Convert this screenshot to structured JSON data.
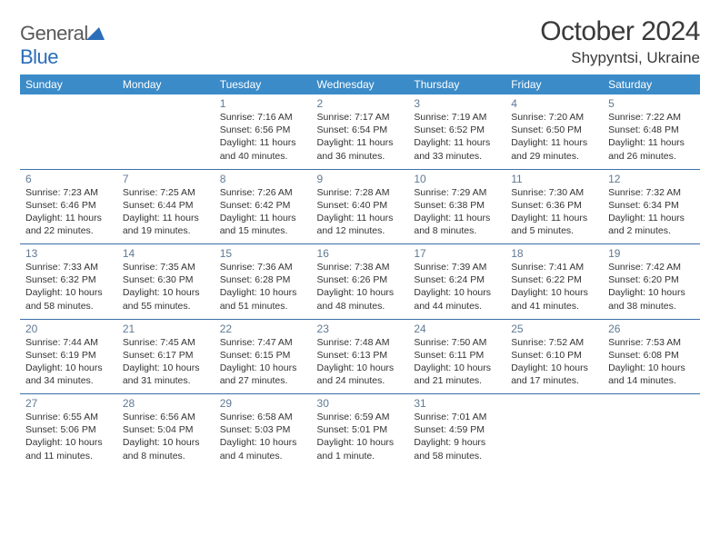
{
  "logo": {
    "text1": "General",
    "text2": "Blue"
  },
  "title": "October 2024",
  "location": "Shypyntsi, Ukraine",
  "colors": {
    "header_bg": "#3b8bc8",
    "header_text": "#ffffff",
    "divider": "#3b6fa8",
    "daynum": "#5f7a94",
    "body_text": "#333333",
    "logo_gray": "#5a5a5a",
    "logo_blue": "#2a6db8",
    "background": "#ffffff"
  },
  "typography": {
    "title_fontsize": 30,
    "location_fontsize": 17,
    "dow_fontsize": 12,
    "daynum_fontsize": 12,
    "cell_fontsize": 10.5,
    "font_family": "Arial"
  },
  "dow": [
    "Sunday",
    "Monday",
    "Tuesday",
    "Wednesday",
    "Thursday",
    "Friday",
    "Saturday"
  ],
  "weeks": [
    [
      null,
      null,
      {
        "n": "1",
        "sr": "Sunrise: 7:16 AM",
        "ss": "Sunset: 6:56 PM",
        "dl": "Daylight: 11 hours and 40 minutes."
      },
      {
        "n": "2",
        "sr": "Sunrise: 7:17 AM",
        "ss": "Sunset: 6:54 PM",
        "dl": "Daylight: 11 hours and 36 minutes."
      },
      {
        "n": "3",
        "sr": "Sunrise: 7:19 AM",
        "ss": "Sunset: 6:52 PM",
        "dl": "Daylight: 11 hours and 33 minutes."
      },
      {
        "n": "4",
        "sr": "Sunrise: 7:20 AM",
        "ss": "Sunset: 6:50 PM",
        "dl": "Daylight: 11 hours and 29 minutes."
      },
      {
        "n": "5",
        "sr": "Sunrise: 7:22 AM",
        "ss": "Sunset: 6:48 PM",
        "dl": "Daylight: 11 hours and 26 minutes."
      }
    ],
    [
      {
        "n": "6",
        "sr": "Sunrise: 7:23 AM",
        "ss": "Sunset: 6:46 PM",
        "dl": "Daylight: 11 hours and 22 minutes."
      },
      {
        "n": "7",
        "sr": "Sunrise: 7:25 AM",
        "ss": "Sunset: 6:44 PM",
        "dl": "Daylight: 11 hours and 19 minutes."
      },
      {
        "n": "8",
        "sr": "Sunrise: 7:26 AM",
        "ss": "Sunset: 6:42 PM",
        "dl": "Daylight: 11 hours and 15 minutes."
      },
      {
        "n": "9",
        "sr": "Sunrise: 7:28 AM",
        "ss": "Sunset: 6:40 PM",
        "dl": "Daylight: 11 hours and 12 minutes."
      },
      {
        "n": "10",
        "sr": "Sunrise: 7:29 AM",
        "ss": "Sunset: 6:38 PM",
        "dl": "Daylight: 11 hours and 8 minutes."
      },
      {
        "n": "11",
        "sr": "Sunrise: 7:30 AM",
        "ss": "Sunset: 6:36 PM",
        "dl": "Daylight: 11 hours and 5 minutes."
      },
      {
        "n": "12",
        "sr": "Sunrise: 7:32 AM",
        "ss": "Sunset: 6:34 PM",
        "dl": "Daylight: 11 hours and 2 minutes."
      }
    ],
    [
      {
        "n": "13",
        "sr": "Sunrise: 7:33 AM",
        "ss": "Sunset: 6:32 PM",
        "dl": "Daylight: 10 hours and 58 minutes."
      },
      {
        "n": "14",
        "sr": "Sunrise: 7:35 AM",
        "ss": "Sunset: 6:30 PM",
        "dl": "Daylight: 10 hours and 55 minutes."
      },
      {
        "n": "15",
        "sr": "Sunrise: 7:36 AM",
        "ss": "Sunset: 6:28 PM",
        "dl": "Daylight: 10 hours and 51 minutes."
      },
      {
        "n": "16",
        "sr": "Sunrise: 7:38 AM",
        "ss": "Sunset: 6:26 PM",
        "dl": "Daylight: 10 hours and 48 minutes."
      },
      {
        "n": "17",
        "sr": "Sunrise: 7:39 AM",
        "ss": "Sunset: 6:24 PM",
        "dl": "Daylight: 10 hours and 44 minutes."
      },
      {
        "n": "18",
        "sr": "Sunrise: 7:41 AM",
        "ss": "Sunset: 6:22 PM",
        "dl": "Daylight: 10 hours and 41 minutes."
      },
      {
        "n": "19",
        "sr": "Sunrise: 7:42 AM",
        "ss": "Sunset: 6:20 PM",
        "dl": "Daylight: 10 hours and 38 minutes."
      }
    ],
    [
      {
        "n": "20",
        "sr": "Sunrise: 7:44 AM",
        "ss": "Sunset: 6:19 PM",
        "dl": "Daylight: 10 hours and 34 minutes."
      },
      {
        "n": "21",
        "sr": "Sunrise: 7:45 AM",
        "ss": "Sunset: 6:17 PM",
        "dl": "Daylight: 10 hours and 31 minutes."
      },
      {
        "n": "22",
        "sr": "Sunrise: 7:47 AM",
        "ss": "Sunset: 6:15 PM",
        "dl": "Daylight: 10 hours and 27 minutes."
      },
      {
        "n": "23",
        "sr": "Sunrise: 7:48 AM",
        "ss": "Sunset: 6:13 PM",
        "dl": "Daylight: 10 hours and 24 minutes."
      },
      {
        "n": "24",
        "sr": "Sunrise: 7:50 AM",
        "ss": "Sunset: 6:11 PM",
        "dl": "Daylight: 10 hours and 21 minutes."
      },
      {
        "n": "25",
        "sr": "Sunrise: 7:52 AM",
        "ss": "Sunset: 6:10 PM",
        "dl": "Daylight: 10 hours and 17 minutes."
      },
      {
        "n": "26",
        "sr": "Sunrise: 7:53 AM",
        "ss": "Sunset: 6:08 PM",
        "dl": "Daylight: 10 hours and 14 minutes."
      }
    ],
    [
      {
        "n": "27",
        "sr": "Sunrise: 6:55 AM",
        "ss": "Sunset: 5:06 PM",
        "dl": "Daylight: 10 hours and 11 minutes."
      },
      {
        "n": "28",
        "sr": "Sunrise: 6:56 AM",
        "ss": "Sunset: 5:04 PM",
        "dl": "Daylight: 10 hours and 8 minutes."
      },
      {
        "n": "29",
        "sr": "Sunrise: 6:58 AM",
        "ss": "Sunset: 5:03 PM",
        "dl": "Daylight: 10 hours and 4 minutes."
      },
      {
        "n": "30",
        "sr": "Sunrise: 6:59 AM",
        "ss": "Sunset: 5:01 PM",
        "dl": "Daylight: 10 hours and 1 minute."
      },
      {
        "n": "31",
        "sr": "Sunrise: 7:01 AM",
        "ss": "Sunset: 4:59 PM",
        "dl": "Daylight: 9 hours and 58 minutes."
      },
      null,
      null
    ]
  ]
}
